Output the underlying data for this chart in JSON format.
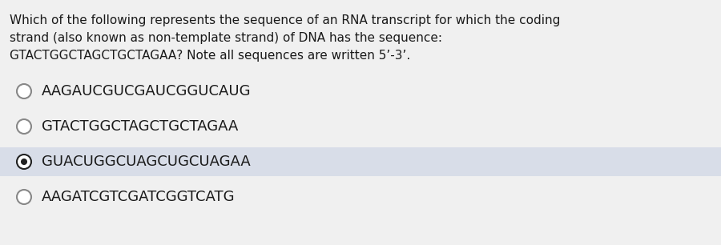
{
  "question_lines": [
    "Which of the following represents the sequence of an RNA transcript for which the coding",
    "strand (also known as non-template strand) of DNA has the sequence:",
    "GTACTGGCTAGCTGCTAGAA? Note all sequences are written 5’-3’."
  ],
  "options": [
    {
      "text": "AAGAUCGUCGAUCGGUCAUG",
      "selected": false
    },
    {
      "text": "GTACTGGCTAGCTGCTAGAA",
      "selected": false
    },
    {
      "text": "GUACUGGCUAGCUGCUAGAA",
      "selected": true
    },
    {
      "text": "AAGATCGTCGATCGGTCATG",
      "selected": false
    }
  ],
  "bg_color": "#f0f0f0",
  "highlight_color": "#d8dde8",
  "text_color": "#1a1a1a",
  "question_fontsize": 11.0,
  "option_fontsize": 13.0,
  "selected_fill": "#222222",
  "unselected_edge": "#888888"
}
